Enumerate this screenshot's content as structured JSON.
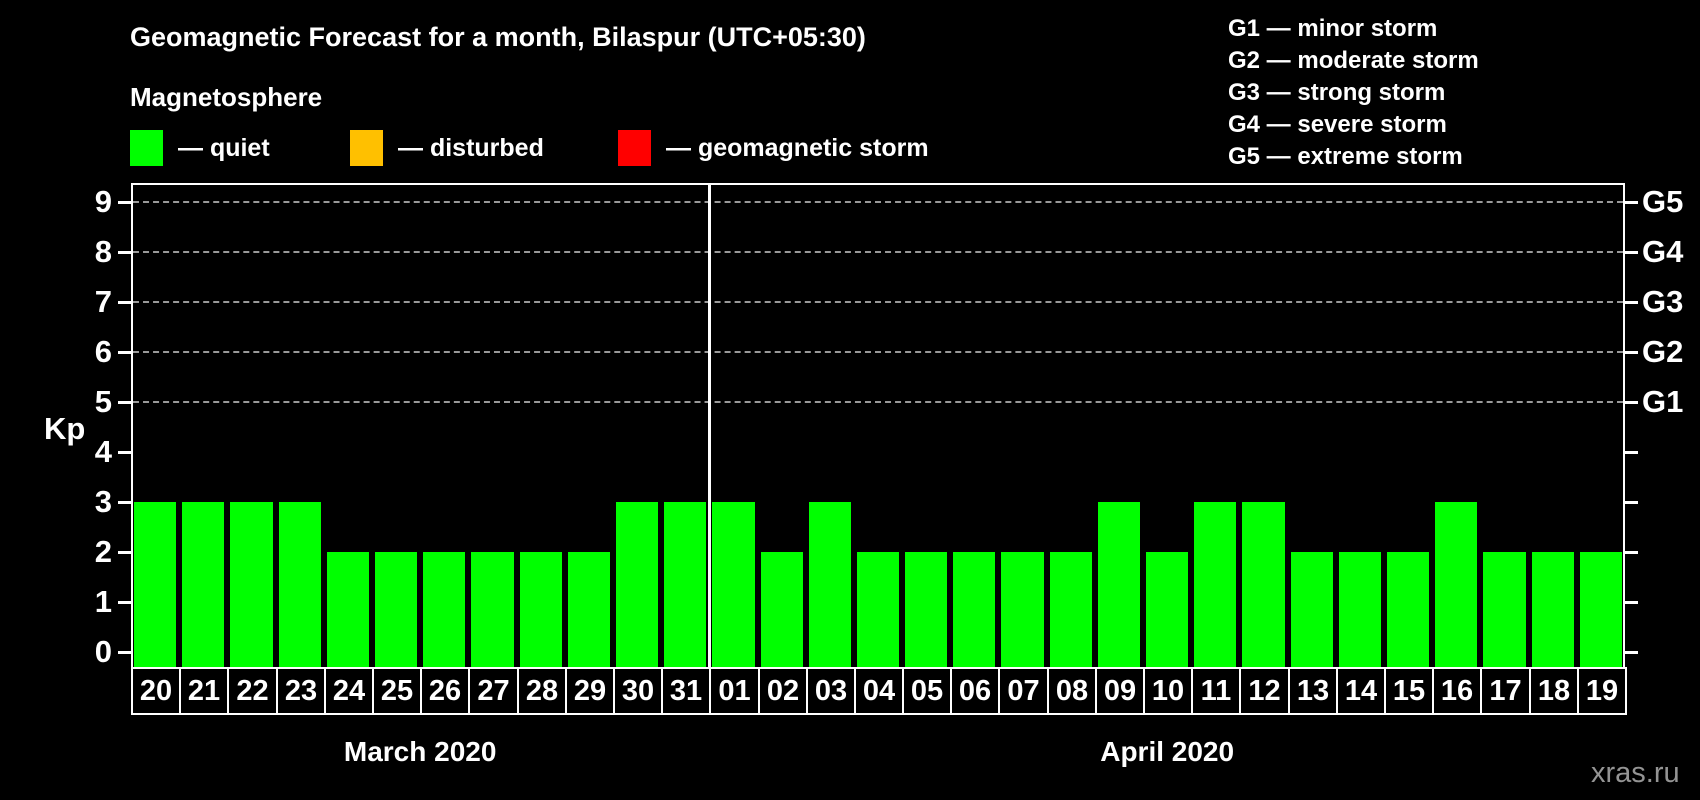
{
  "title": "Geomagnetic Forecast for a month, Bilaspur (UTC+05:30)",
  "subtitle": "Magnetosphere",
  "legend": {
    "items": [
      {
        "name": "quiet",
        "label": "— quiet",
        "color": "#00ff00"
      },
      {
        "name": "disturbed",
        "label": "— disturbed",
        "color": "#ffc000"
      },
      {
        "name": "geomagnetic-storm",
        "label": "— geomagnetic storm",
        "color": "#ff0000"
      }
    ]
  },
  "g_legend": [
    "G1 — minor storm",
    "G2 — moderate storm",
    "G3 — strong storm",
    "G4 — severe storm",
    "G5 — extreme storm"
  ],
  "axes": {
    "y_label": "Kp",
    "y_ticks": [
      0,
      1,
      2,
      3,
      4,
      5,
      6,
      7,
      8,
      9
    ],
    "right_axis": [
      {
        "value": 5,
        "label": "G1"
      },
      {
        "value": 6,
        "label": "G2"
      },
      {
        "value": 7,
        "label": "G3"
      },
      {
        "value": 8,
        "label": "G4"
      },
      {
        "value": 9,
        "label": "G5"
      }
    ]
  },
  "chart_data": {
    "type": "bar",
    "title": "Geomagnetic Forecast for a month, Bilaspur (UTC+05:30)",
    "xlabel": "",
    "ylabel": "Kp",
    "ylim": [
      0,
      9
    ],
    "grid_levels": [
      5,
      6,
      7,
      8,
      9
    ],
    "grid_style": "dashed",
    "legend_position": "top-left",
    "bar_color": "#00ff00",
    "groups": [
      {
        "month": "March 2020",
        "days": [
          "20",
          "21",
          "22",
          "23",
          "24",
          "25",
          "26",
          "27",
          "28",
          "29",
          "30",
          "31"
        ],
        "values": [
          3,
          3,
          3,
          3,
          2,
          2,
          2,
          2,
          2,
          2,
          3,
          3
        ]
      },
      {
        "month": "April 2020",
        "days": [
          "01",
          "02",
          "03",
          "04",
          "05",
          "06",
          "07",
          "08",
          "09",
          "10",
          "11",
          "12",
          "13",
          "14",
          "15",
          "16",
          "17",
          "18",
          "19"
        ],
        "values": [
          3,
          2,
          3,
          2,
          2,
          2,
          2,
          2,
          3,
          2,
          3,
          3,
          2,
          2,
          2,
          3,
          2,
          2,
          2
        ]
      }
    ]
  },
  "watermark": "xras.ru"
}
